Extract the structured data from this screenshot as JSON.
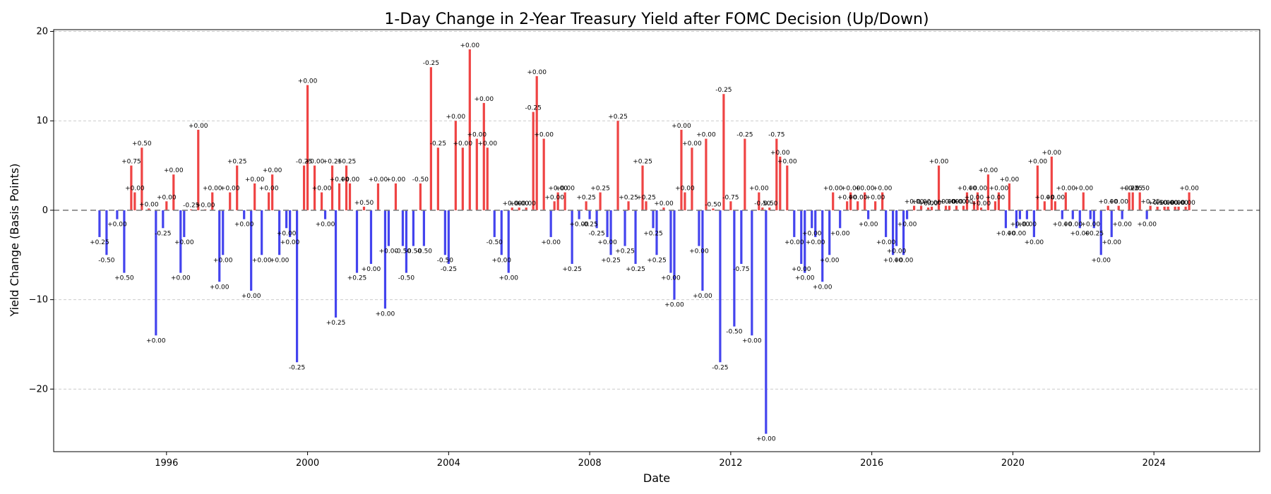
{
  "chart_data": {
    "type": "bar",
    "title": "1-Day Change in 2-Year Treasury Yield after FOMC Decision (Up/Down)",
    "xlabel": "Date",
    "ylabel": "Yield Change (Basis Points)",
    "xlim": [
      1992.8,
      2027.0
    ],
    "ylim": [
      -27,
      20.2
    ],
    "x_ticks": [
      1996,
      2000,
      2004,
      2008,
      2012,
      2016,
      2020,
      2024
    ],
    "y_ticks": [
      -20,
      -10,
      0,
      10,
      20
    ],
    "y_tick_labels": [
      "−20",
      "−10",
      "0",
      "10",
      "20"
    ],
    "grid": {
      "y": true,
      "x": false,
      "style": "dashed"
    },
    "zero_line": {
      "value": 0,
      "style": "dashed",
      "color": "#808080"
    },
    "colors": {
      "up": "#ef4444",
      "down": "#4444ee"
    },
    "values": [
      {
        "x": 1994.1,
        "y": -3,
        "label": "+0.25"
      },
      {
        "x": 1994.3,
        "y": -5,
        "label": "-0.50"
      },
      {
        "x": 1994.6,
        "y": -1,
        "label": "+0.00"
      },
      {
        "x": 1994.8,
        "y": -7,
        "label": "+0.50"
      },
      {
        "x": 1995.0,
        "y": 5,
        "label": "+0.75"
      },
      {
        "x": 1995.1,
        "y": 2,
        "label": "+0.00"
      },
      {
        "x": 1995.3,
        "y": 7,
        "label": "+0.50"
      },
      {
        "x": 1995.5,
        "y": 0.2,
        "label": "+0.00"
      },
      {
        "x": 1995.7,
        "y": -14,
        "label": "+0.00"
      },
      {
        "x": 1995.9,
        "y": -2,
        "label": "-0.25"
      },
      {
        "x": 1996.0,
        "y": 1,
        "label": "+0.00"
      },
      {
        "x": 1996.2,
        "y": 4,
        "label": "+0.00"
      },
      {
        "x": 1996.4,
        "y": -7,
        "label": "+0.00"
      },
      {
        "x": 1996.5,
        "y": -3,
        "label": "+0.00"
      },
      {
        "x": 1996.7,
        "y": 0.1,
        "label": "-0.25"
      },
      {
        "x": 1996.9,
        "y": 9,
        "label": "+0.00"
      },
      {
        "x": 1997.1,
        "y": 0.1,
        "label": "+0.00"
      },
      {
        "x": 1997.3,
        "y": 2,
        "label": "+0.00"
      },
      {
        "x": 1997.5,
        "y": -8,
        "label": "+0.00"
      },
      {
        "x": 1997.6,
        "y": -5,
        "label": "+0.00"
      },
      {
        "x": 1997.8,
        "y": 2,
        "label": "+0.00"
      },
      {
        "x": 1998.0,
        "y": 5,
        "label": "+0.25"
      },
      {
        "x": 1998.2,
        "y": -1,
        "label": "+0.00"
      },
      {
        "x": 1998.4,
        "y": -9,
        "label": "+0.00"
      },
      {
        "x": 1998.5,
        "y": 3,
        "label": "+0.00"
      },
      {
        "x": 1998.7,
        "y": -5,
        "label": "+0.00"
      },
      {
        "x": 1998.9,
        "y": 2,
        "label": "+0.00"
      },
      {
        "x": 1999.0,
        "y": 4,
        "label": "+0.00"
      },
      {
        "x": 1999.2,
        "y": -5,
        "label": "+0.00"
      },
      {
        "x": 1999.4,
        "y": -2,
        "label": "+0.00"
      },
      {
        "x": 1999.5,
        "y": -3,
        "label": "+0.00"
      },
      {
        "x": 1999.7,
        "y": -17,
        "label": "-0.25"
      },
      {
        "x": 1999.9,
        "y": 5,
        "label": "-0.25"
      },
      {
        "x": 2000.0,
        "y": 14,
        "label": "+0.00"
      },
      {
        "x": 2000.2,
        "y": 5,
        "label": "+0.00"
      },
      {
        "x": 2000.4,
        "y": 2,
        "label": "+0.00"
      },
      {
        "x": 2000.5,
        "y": -1,
        "label": "+0.00"
      },
      {
        "x": 2000.7,
        "y": 5,
        "label": "+0.25"
      },
      {
        "x": 2000.8,
        "y": -12,
        "label": "+0.25"
      },
      {
        "x": 2000.9,
        "y": 3,
        "label": "+0.00"
      },
      {
        "x": 2001.1,
        "y": 5,
        "label": "+0.25"
      },
      {
        "x": 2001.2,
        "y": 3,
        "label": "+0.00"
      },
      {
        "x": 2001.4,
        "y": -7,
        "label": "+0.25"
      },
      {
        "x": 2001.6,
        "y": 0.4,
        "label": "+0.50"
      },
      {
        "x": 2001.8,
        "y": -6,
        "label": "+0.00"
      },
      {
        "x": 2002.0,
        "y": 3,
        "label": "+0.00"
      },
      {
        "x": 2002.2,
        "y": -11,
        "label": "+0.00"
      },
      {
        "x": 2002.3,
        "y": -4,
        "label": "+0.00"
      },
      {
        "x": 2002.5,
        "y": 3,
        "label": "+0.00"
      },
      {
        "x": 2002.7,
        "y": -4,
        "label": "-0.50"
      },
      {
        "x": 2002.8,
        "y": -7,
        "label": "-0.50"
      },
      {
        "x": 2003.0,
        "y": -4,
        "label": "-0.50"
      },
      {
        "x": 2003.2,
        "y": 3,
        "label": "-0.50"
      },
      {
        "x": 2003.3,
        "y": -4,
        "label": "-0.50"
      },
      {
        "x": 2003.5,
        "y": 16,
        "label": "-0.25"
      },
      {
        "x": 2003.7,
        "y": 7,
        "label": "-0.25"
      },
      {
        "x": 2003.9,
        "y": -5,
        "label": "-0.50"
      },
      {
        "x": 2004.0,
        "y": -6,
        "label": "-0.25"
      },
      {
        "x": 2004.2,
        "y": 10,
        "label": "+0.00"
      },
      {
        "x": 2004.4,
        "y": 7,
        "label": "+0.00"
      },
      {
        "x": 2004.6,
        "y": 18,
        "label": "+0.00"
      },
      {
        "x": 2004.8,
        "y": 8,
        "label": "+0.00"
      },
      {
        "x": 2005.0,
        "y": 12,
        "label": "+0.00"
      },
      {
        "x": 2005.1,
        "y": 7,
        "label": "+0.00"
      },
      {
        "x": 2005.3,
        "y": -3,
        "label": "-0.50"
      },
      {
        "x": 2005.5,
        "y": -5,
        "label": "+0.00"
      },
      {
        "x": 2005.7,
        "y": -7,
        "label": "+0.00"
      },
      {
        "x": 2005.8,
        "y": 0.3,
        "label": "+0.00"
      },
      {
        "x": 2006.0,
        "y": 0.3,
        "label": "+0.00"
      },
      {
        "x": 2006.2,
        "y": 0.3,
        "label": "+0.00"
      },
      {
        "x": 2006.4,
        "y": 11,
        "label": "-0.25"
      },
      {
        "x": 2006.5,
        "y": 15,
        "label": "+0.00"
      },
      {
        "x": 2006.7,
        "y": 8,
        "label": "+0.00"
      },
      {
        "x": 2006.9,
        "y": -3,
        "label": "+0.00"
      },
      {
        "x": 2007.0,
        "y": 1,
        "label": "+0.00"
      },
      {
        "x": 2007.1,
        "y": 2,
        "label": "+0.00"
      },
      {
        "x": 2007.3,
        "y": 2,
        "label": "+0.00"
      },
      {
        "x": 2007.5,
        "y": -6,
        "label": "+0.25"
      },
      {
        "x": 2007.7,
        "y": -1,
        "label": "+0.00"
      },
      {
        "x": 2007.9,
        "y": 1,
        "label": "+0.25"
      },
      {
        "x": 2008.0,
        "y": -1,
        "label": "-0.25"
      },
      {
        "x": 2008.2,
        "y": -2,
        "label": "-0.25"
      },
      {
        "x": 2008.3,
        "y": 2,
        "label": "+0.25"
      },
      {
        "x": 2008.5,
        "y": -3,
        "label": "+0.00"
      },
      {
        "x": 2008.6,
        "y": -5,
        "label": "+0.25"
      },
      {
        "x": 2008.8,
        "y": 10,
        "label": "+0.25"
      },
      {
        "x": 2009.0,
        "y": -4,
        "label": "+0.25"
      },
      {
        "x": 2009.1,
        "y": 1,
        "label": "+0.25"
      },
      {
        "x": 2009.3,
        "y": -6,
        "label": "+0.25"
      },
      {
        "x": 2009.5,
        "y": 5,
        "label": "+0.25"
      },
      {
        "x": 2009.6,
        "y": 1,
        "label": "+0.25"
      },
      {
        "x": 2009.8,
        "y": -2,
        "label": "+0.25"
      },
      {
        "x": 2009.9,
        "y": -5,
        "label": "+0.25"
      },
      {
        "x": 2010.1,
        "y": 0.3,
        "label": "+0.00"
      },
      {
        "x": 2010.3,
        "y": -7,
        "label": "+0.00"
      },
      {
        "x": 2010.4,
        "y": -10,
        "label": "+0.00"
      },
      {
        "x": 2010.6,
        "y": 9,
        "label": "+0.00"
      },
      {
        "x": 2010.7,
        "y": 2,
        "label": "+0.00"
      },
      {
        "x": 2010.9,
        "y": 7,
        "label": "+0.00"
      },
      {
        "x": 2011.1,
        "y": -4,
        "label": "+0.00"
      },
      {
        "x": 2011.2,
        "y": -9,
        "label": "+0.00"
      },
      {
        "x": 2011.3,
        "y": 8,
        "label": "+0.00"
      },
      {
        "x": 2011.5,
        "y": 0.2,
        "label": "-0.50"
      },
      {
        "x": 2011.7,
        "y": -17,
        "label": "-0.25"
      },
      {
        "x": 2011.8,
        "y": 13,
        "label": "-0.25"
      },
      {
        "x": 2012.0,
        "y": 1,
        "label": "-0.75"
      },
      {
        "x": 2012.1,
        "y": -13,
        "label": "-0.50"
      },
      {
        "x": 2012.3,
        "y": -6,
        "label": "-0.75"
      },
      {
        "x": 2012.4,
        "y": 8,
        "label": "-0.25"
      },
      {
        "x": 2012.6,
        "y": -14,
        "label": "+0.00"
      },
      {
        "x": 2012.8,
        "y": 2,
        "label": "+0.00"
      },
      {
        "x": 2012.9,
        "y": 0.3,
        "label": "-0.50"
      },
      {
        "x": 2013.0,
        "y": -25,
        "label": "+0.00"
      },
      {
        "x": 2013.1,
        "y": 0.3,
        "label": "-0.50"
      },
      {
        "x": 2013.3,
        "y": 8,
        "label": "-0.75"
      },
      {
        "x": 2013.4,
        "y": 6,
        "label": "+0.00"
      },
      {
        "x": 2013.6,
        "y": 5,
        "label": "+0.00"
      },
      {
        "x": 2013.8,
        "y": -3,
        "label": "+0.00"
      },
      {
        "x": 2014.0,
        "y": -6,
        "label": "+0.00"
      },
      {
        "x": 2014.1,
        "y": -7,
        "label": "+0.00"
      },
      {
        "x": 2014.3,
        "y": -2,
        "label": "+0.00"
      },
      {
        "x": 2014.4,
        "y": -3,
        "label": "+0.00"
      },
      {
        "x": 2014.6,
        "y": -8,
        "label": "+0.00"
      },
      {
        "x": 2014.8,
        "y": -5,
        "label": "+0.00"
      },
      {
        "x": 2014.9,
        "y": 2,
        "label": "+0.00"
      },
      {
        "x": 2015.1,
        "y": -2,
        "label": "+0.00"
      },
      {
        "x": 2015.3,
        "y": 1,
        "label": "+0.00"
      },
      {
        "x": 2015.4,
        "y": 2,
        "label": "+0.00"
      },
      {
        "x": 2015.6,
        "y": 1,
        "label": "+0.00"
      },
      {
        "x": 2015.8,
        "y": 2,
        "label": "+0.00"
      },
      {
        "x": 2015.9,
        "y": -1,
        "label": "+0.00"
      },
      {
        "x": 2016.1,
        "y": 1,
        "label": "+0.00"
      },
      {
        "x": 2016.3,
        "y": 2,
        "label": "+0.00"
      },
      {
        "x": 2016.4,
        "y": -3,
        "label": "+0.00"
      },
      {
        "x": 2016.6,
        "y": -5,
        "label": "+0.00"
      },
      {
        "x": 2016.7,
        "y": -4,
        "label": "+0.00"
      },
      {
        "x": 2016.9,
        "y": -5,
        "label": "+0.00"
      },
      {
        "x": 2017.0,
        "y": -1,
        "label": "+0.00"
      },
      {
        "x": 2017.2,
        "y": 0.5,
        "label": "+0.00"
      },
      {
        "x": 2017.4,
        "y": 0.5,
        "label": "+0.00"
      },
      {
        "x": 2017.6,
        "y": 0.3,
        "label": "+0.00"
      },
      {
        "x": 2017.7,
        "y": 0.4,
        "label": "+0.00"
      },
      {
        "x": 2017.9,
        "y": 5,
        "label": "+0.00"
      },
      {
        "x": 2018.1,
        "y": 0.5,
        "label": "+0.00"
      },
      {
        "x": 2018.2,
        "y": 0.5,
        "label": "+0.00"
      },
      {
        "x": 2018.4,
        "y": 0.5,
        "label": "+0.00"
      },
      {
        "x": 2018.6,
        "y": 0.5,
        "label": "+0.00"
      },
      {
        "x": 2018.7,
        "y": 2,
        "label": "+0.00"
      },
      {
        "x": 2018.9,
        "y": 1,
        "label": "+0.00"
      },
      {
        "x": 2019.0,
        "y": 2,
        "label": "+0.00"
      },
      {
        "x": 2019.1,
        "y": 0.3,
        "label": "+0.00"
      },
      {
        "x": 2019.3,
        "y": 4,
        "label": "+0.00"
      },
      {
        "x": 2019.5,
        "y": 1,
        "label": "+0.00"
      },
      {
        "x": 2019.6,
        "y": 2,
        "label": "+0.00"
      },
      {
        "x": 2019.8,
        "y": -2,
        "label": "+0.00"
      },
      {
        "x": 2019.9,
        "y": 3,
        "label": "+0.00"
      },
      {
        "x": 2020.1,
        "y": -2,
        "label": "+0.00"
      },
      {
        "x": 2020.2,
        "y": -1,
        "label": "+0.00"
      },
      {
        "x": 2020.4,
        "y": -1,
        "label": "+0.00"
      },
      {
        "x": 2020.6,
        "y": -3,
        "label": "+0.00"
      },
      {
        "x": 2020.7,
        "y": 5,
        "label": "+0.00"
      },
      {
        "x": 2020.9,
        "y": 1,
        "label": "+0.00"
      },
      {
        "x": 2021.1,
        "y": 6,
        "label": "+0.00"
      },
      {
        "x": 2021.2,
        "y": 1,
        "label": "+0.00"
      },
      {
        "x": 2021.4,
        "y": -1,
        "label": "+0.00"
      },
      {
        "x": 2021.5,
        "y": 2,
        "label": "+0.00"
      },
      {
        "x": 2021.7,
        "y": -1,
        "label": "+0.00"
      },
      {
        "x": 2021.9,
        "y": -2,
        "label": "+0.00"
      },
      {
        "x": 2022.0,
        "y": 2,
        "label": "+0.00"
      },
      {
        "x": 2022.2,
        "y": -1,
        "label": "+0.00"
      },
      {
        "x": 2022.3,
        "y": -2,
        "label": "+0.25"
      },
      {
        "x": 2022.5,
        "y": -5,
        "label": "+0.00"
      },
      {
        "x": 2022.7,
        "y": 0.5,
        "label": "+0.00"
      },
      {
        "x": 2022.8,
        "y": -3,
        "label": "+0.00"
      },
      {
        "x": 2023.0,
        "y": 0.5,
        "label": "+0.00"
      },
      {
        "x": 2023.1,
        "y": -1,
        "label": "+0.00"
      },
      {
        "x": 2023.3,
        "y": 2,
        "label": "+0.25"
      },
      {
        "x": 2023.4,
        "y": 2,
        "label": "+0.25"
      },
      {
        "x": 2023.6,
        "y": 2,
        "label": "+0.50"
      },
      {
        "x": 2023.8,
        "y": -1,
        "label": "+0.00"
      },
      {
        "x": 2023.9,
        "y": 0.5,
        "label": "+0.25"
      },
      {
        "x": 2024.1,
        "y": 0.4,
        "label": "+0.50"
      },
      {
        "x": 2024.3,
        "y": 0.4,
        "label": "+0.00"
      },
      {
        "x": 2024.4,
        "y": 0.4,
        "label": "+0.00"
      },
      {
        "x": 2024.6,
        "y": 0.4,
        "label": "+0.00"
      },
      {
        "x": 2024.7,
        "y": 0.4,
        "label": "+0.00"
      },
      {
        "x": 2024.9,
        "y": 0.4,
        "label": "+0.00"
      },
      {
        "x": 2025.0,
        "y": 2,
        "label": "+0.00"
      }
    ]
  }
}
